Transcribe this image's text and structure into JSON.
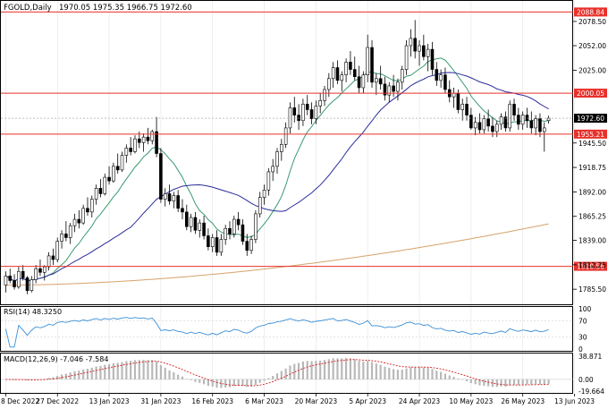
{
  "header": {
    "symbol_label": "FGOLD,Daily",
    "ohlc_values": "1970.05 1975.35 1966.75 1972.60"
  },
  "colors": {
    "bull_candle": "#ffffff",
    "bear_candle": "#000000",
    "candle_outline": "#000000",
    "level_line": "#e8302a",
    "price_marker": "#000000",
    "sma_fast": "#3a9a6e",
    "sma_mid": "#2b2d9a",
    "sma_slow": "#d6a26a",
    "rsi_line": "#3b8fd6",
    "macd_signal": "#d62020",
    "macd_hist": "#b8b8b8",
    "grid": "#e4e4e4",
    "frame": "#000000"
  },
  "chart_data": [
    {
      "type": "candlestick",
      "panel": "price",
      "title": "FGOLD,Daily",
      "ylim": [
        1770,
        2100
      ],
      "yticks": [
        2078.5,
        2052.0,
        2025.0,
        1945.5,
        1918.75,
        1892.0,
        1865.25,
        1839.0,
        1812.25,
        1785.5
      ],
      "ytick_labels": [
        "2078.50",
        "2052.00",
        "2025.00",
        "1945.50",
        "1918.75",
        "1892.00",
        "1865.25",
        "1839.00",
        "1812.25",
        "1785.50"
      ],
      "xticks": [
        {
          "label": "8 Dec 2022",
          "index": 0
        },
        {
          "label": "27 Dec 2022",
          "index": 12
        },
        {
          "label": "13 Jan 2023",
          "index": 24
        },
        {
          "label": "31 Jan 2023",
          "index": 36
        },
        {
          "label": "16 Feb 2023",
          "index": 48
        },
        {
          "label": "6 Mar 2023",
          "index": 60
        },
        {
          "label": "20 Mar 2023",
          "index": 72
        },
        {
          "label": "5 Apr 2023",
          "index": 84
        },
        {
          "label": "24 Apr 2023",
          "index": 96
        },
        {
          "label": "10 May 2023",
          "index": 108
        },
        {
          "label": "26 May 2023",
          "index": 120
        },
        {
          "label": "13 Jun 2023",
          "index": 132
        }
      ],
      "horizontal_levels": [
        {
          "value": 2088.84,
          "label": "2088.84"
        },
        {
          "value": 2000.05,
          "label": "2000.05"
        },
        {
          "value": 1955.21,
          "label": "1955.21"
        },
        {
          "value": 1810.56,
          "label": "1810.56"
        }
      ],
      "last_price": {
        "value": 1972.6,
        "label": "1972.60"
      },
      "ohlc": [
        [
          1790,
          1805,
          1782,
          1800
        ],
        [
          1800,
          1808,
          1792,
          1795
        ],
        [
          1795,
          1802,
          1785,
          1788
        ],
        [
          1788,
          1810,
          1786,
          1805
        ],
        [
          1805,
          1812,
          1795,
          1798
        ],
        [
          1798,
          1800,
          1780,
          1784
        ],
        [
          1784,
          1800,
          1782,
          1796
        ],
        [
          1796,
          1812,
          1792,
          1808
        ],
        [
          1808,
          1818,
          1800,
          1804
        ],
        [
          1804,
          1812,
          1795,
          1810
        ],
        [
          1810,
          1826,
          1806,
          1822
        ],
        [
          1822,
          1830,
          1812,
          1818
        ],
        [
          1818,
          1842,
          1815,
          1838
        ],
        [
          1838,
          1850,
          1830,
          1846
        ],
        [
          1846,
          1860,
          1838,
          1842
        ],
        [
          1842,
          1858,
          1835,
          1855
        ],
        [
          1855,
          1868,
          1848,
          1862
        ],
        [
          1862,
          1872,
          1852,
          1858
        ],
        [
          1858,
          1878,
          1856,
          1874
        ],
        [
          1874,
          1886,
          1866,
          1870
        ],
        [
          1870,
          1888,
          1864,
          1884
        ],
        [
          1884,
          1900,
          1878,
          1896
        ],
        [
          1896,
          1906,
          1886,
          1890
        ],
        [
          1890,
          1912,
          1888,
          1908
        ],
        [
          1908,
          1920,
          1900,
          1904
        ],
        [
          1904,
          1924,
          1902,
          1920
        ],
        [
          1920,
          1934,
          1912,
          1916
        ],
        [
          1916,
          1936,
          1914,
          1932
        ],
        [
          1932,
          1944,
          1924,
          1940
        ],
        [
          1940,
          1952,
          1932,
          1936
        ],
        [
          1936,
          1954,
          1934,
          1950
        ],
        [
          1950,
          1958,
          1940,
          1946
        ],
        [
          1946,
          1956,
          1936,
          1952
        ],
        [
          1952,
          1962,
          1944,
          1948
        ],
        [
          1948,
          1960,
          1944,
          1958
        ],
        [
          1958,
          1974,
          1930,
          1934
        ],
        [
          1934,
          1940,
          1880,
          1884
        ],
        [
          1884,
          1896,
          1876,
          1890
        ],
        [
          1890,
          1900,
          1878,
          1882
        ],
        [
          1882,
          1892,
          1874,
          1888
        ],
        [
          1888,
          1894,
          1870,
          1874
        ],
        [
          1874,
          1884,
          1862,
          1870
        ],
        [
          1870,
          1878,
          1850,
          1854
        ],
        [
          1854,
          1868,
          1848,
          1864
        ],
        [
          1864,
          1870,
          1846,
          1850
        ],
        [
          1850,
          1862,
          1842,
          1858
        ],
        [
          1858,
          1866,
          1840,
          1844
        ],
        [
          1844,
          1852,
          1828,
          1832
        ],
        [
          1832,
          1846,
          1826,
          1842
        ],
        [
          1842,
          1850,
          1822,
          1826
        ],
        [
          1826,
          1846,
          1822,
          1840
        ],
        [
          1840,
          1856,
          1834,
          1852
        ],
        [
          1852,
          1860,
          1840,
          1846
        ],
        [
          1846,
          1866,
          1842,
          1862
        ],
        [
          1862,
          1870,
          1850,
          1856
        ],
        [
          1856,
          1862,
          1834,
          1838
        ],
        [
          1838,
          1846,
          1822,
          1828
        ],
        [
          1828,
          1844,
          1824,
          1840
        ],
        [
          1840,
          1872,
          1836,
          1868
        ],
        [
          1868,
          1892,
          1864,
          1886
        ],
        [
          1886,
          1900,
          1878,
          1894
        ],
        [
          1894,
          1918,
          1888,
          1914
        ],
        [
          1914,
          1928,
          1904,
          1920
        ],
        [
          1920,
          1940,
          1912,
          1936
        ],
        [
          1936,
          1950,
          1926,
          1944
        ],
        [
          1944,
          1968,
          1940,
          1962
        ],
        [
          1962,
          1990,
          1956,
          1984
        ],
        [
          1984,
          1996,
          1968,
          1976
        ],
        [
          1976,
          1988,
          1960,
          1970
        ],
        [
          1970,
          1994,
          1964,
          1988
        ],
        [
          1988,
          1998,
          1976,
          1982
        ],
        [
          1982,
          1990,
          1966,
          1972
        ],
        [
          1972,
          1992,
          1966,
          1986
        ],
        [
          1986,
          2000,
          1978,
          1992
        ],
        [
          1992,
          2008,
          1986,
          2004
        ],
        [
          2004,
          2022,
          1996,
          2016
        ],
        [
          2016,
          2034,
          2006,
          2028
        ],
        [
          2028,
          2036,
          2010,
          2014
        ],
        [
          2014,
          2024,
          2002,
          2020
        ],
        [
          2020,
          2038,
          2012,
          2034
        ],
        [
          2034,
          2046,
          2020,
          2026
        ],
        [
          2026,
          2040,
          2014,
          2018
        ],
        [
          2018,
          2030,
          2000,
          2006
        ],
        [
          2006,
          2024,
          2000,
          2020
        ],
        [
          2020,
          2064,
          2012,
          2050
        ],
        [
          2050,
          2058,
          2006,
          2012
        ],
        [
          2012,
          2022,
          1998,
          2016
        ],
        [
          2016,
          2030,
          2004,
          2010
        ],
        [
          2010,
          2018,
          1992,
          1998
        ],
        [
          1998,
          2012,
          1990,
          2008
        ],
        [
          2008,
          2020,
          1996,
          2002
        ],
        [
          2002,
          2016,
          1992,
          2012
        ],
        [
          2012,
          2030,
          2004,
          2026
        ],
        [
          2026,
          2058,
          2020,
          2052
        ],
        [
          2052,
          2070,
          2040,
          2060
        ],
        [
          2060,
          2080,
          2038,
          2046
        ],
        [
          2046,
          2058,
          2030,
          2052
        ],
        [
          2052,
          2064,
          2036,
          2040
        ],
        [
          2040,
          2054,
          2024,
          2048
        ],
        [
          2048,
          2056,
          2020,
          2026
        ],
        [
          2026,
          2034,
          2008,
          2014
        ],
        [
          2014,
          2026,
          2006,
          2020
        ],
        [
          2020,
          2028,
          2000,
          2004
        ],
        [
          2004,
          2014,
          1990,
          1996
        ],
        [
          1996,
          2006,
          1984,
          2000
        ],
        [
          2000,
          2004,
          1978,
          1982
        ],
        [
          1982,
          1994,
          1970,
          1988
        ],
        [
          1988,
          1996,
          1970,
          1976
        ],
        [
          1976,
          1984,
          1960,
          1962
        ],
        [
          1962,
          1974,
          1954,
          1968
        ],
        [
          1968,
          1978,
          1956,
          1960
        ],
        [
          1960,
          1976,
          1956,
          1972
        ],
        [
          1972,
          1982,
          1958,
          1964
        ],
        [
          1964,
          1974,
          1952,
          1958
        ],
        [
          1958,
          1970,
          1952,
          1966
        ],
        [
          1966,
          1978,
          1960,
          1974
        ],
        [
          1974,
          1980,
          1958,
          1962
        ],
        [
          1962,
          1992,
          1958,
          1988
        ],
        [
          1988,
          1994,
          1970,
          1976
        ],
        [
          1976,
          1984,
          1960,
          1966
        ],
        [
          1966,
          1980,
          1960,
          1976
        ],
        [
          1976,
          1984,
          1962,
          1970
        ],
        [
          1970,
          1980,
          1956,
          1962
        ],
        [
          1962,
          1976,
          1954,
          1972
        ],
        [
          1972,
          1978,
          1952,
          1958
        ],
        [
          1958,
          1968,
          1936,
          1962
        ],
        [
          1970.05,
          1975.35,
          1966.75,
          1972.6
        ]
      ],
      "indicators": [
        {
          "name": "sma-fast",
          "period": 10
        },
        {
          "name": "sma-mid",
          "period": 30
        },
        {
          "name": "sma-slow",
          "period": 150
        }
      ]
    },
    {
      "type": "line",
      "panel": "rsi",
      "label": "RSI(14) 48.3250",
      "ylim": [
        0,
        100
      ],
      "ytick_labels": [
        "100",
        "70",
        "30",
        "0"
      ],
      "yticks": [
        100,
        70,
        30,
        0
      ]
    },
    {
      "type": "bar",
      "panel": "macd",
      "label": "MACD(12,26,9) -7.046 -7.584",
      "ytick_labels": [
        "38.871",
        "0.00",
        "-19.664"
      ],
      "yticks": [
        38.871,
        0,
        -19.664
      ]
    }
  ]
}
